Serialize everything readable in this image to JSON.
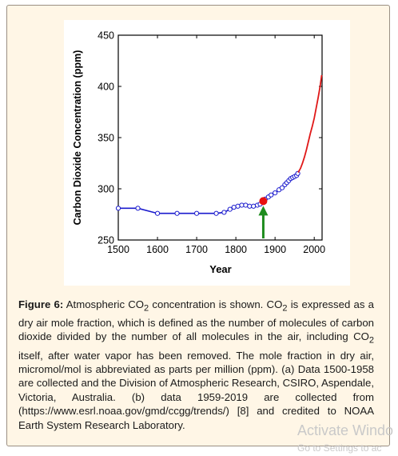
{
  "chart_data": {
    "type": "line",
    "xlabel": "Year",
    "ylabel": "Carbon Dioxide Concentration (ppm)",
    "xlim": [
      1500,
      2020
    ],
    "ylim": [
      250,
      450
    ],
    "x_ticks": [
      "1500",
      "1600",
      "1700",
      "1800",
      "1900",
      "2000"
    ],
    "y_ticks": [
      "250",
      "300",
      "350",
      "400",
      "450"
    ],
    "grid": false,
    "colors": {
      "ice_core": "#1a1acd",
      "modern": "#e01818",
      "highlight_point": "#e81010",
      "arrow": "#1e8c1e"
    },
    "series": [
      {
        "x": [
          1500,
          1550,
          1600,
          1650,
          1700,
          1750,
          1770,
          1785,
          1795,
          1805,
          1815,
          1825,
          1835,
          1845,
          1855,
          1862,
          1868,
          1875,
          1883,
          1890,
          1900,
          1910,
          1918,
          1925,
          1930,
          1935,
          1940,
          1945,
          1950,
          1955,
          1958
        ],
        "y": [
          281,
          281,
          276,
          276,
          276,
          276,
          277,
          280,
          282,
          283,
          284,
          284,
          283,
          283,
          284,
          285,
          287,
          290,
          292,
          294,
          296,
          299,
          301,
          304,
          306,
          308,
          310,
          311,
          312,
          313,
          315
        ]
      },
      {
        "x": [
          1959,
          1965,
          1970,
          1975,
          1980,
          1985,
          1990,
          1995,
          2000,
          2005,
          2010,
          2015,
          2019
        ],
        "y": [
          316,
          320,
          325,
          331,
          338,
          346,
          354,
          361,
          369,
          379,
          389,
          400,
          411
        ]
      }
    ],
    "highlight_point": {
      "x": 1870,
      "y": 288
    },
    "arrow_at_year": 1870
  },
  "caption": {
    "label": "Figure 6:",
    "line1_a": " Atmospheric CO",
    "line1_sub": "2",
    "line1_b": " concentration is shown. CO",
    "line1_sub2": "2",
    "line1_c": " is expressed as a dry air mole fraction, which is defined as the number of molecules of carbon dioxide divided by the number of all molecules in the air, including CO",
    "line1_sub3": "2",
    "line1_d": " itself, after water vapor has been removed. The mole fraction in dry air, micromol/mol is abbreviated as parts per million (ppm). (a) Data 1500-1958 are collected and the Division of Atmospheric Research, CSIRO, Aspendale, Victoria, Australia. (b) data 1959-2019 are collected from (https://www.esrl.noaa.gov/gmd/ccgg/trends/) [8] and credited to NOAA Earth System Research Laboratory."
  },
  "watermark": {
    "line1": "Activate Windo",
    "line2": "Go to Settings to ac"
  }
}
